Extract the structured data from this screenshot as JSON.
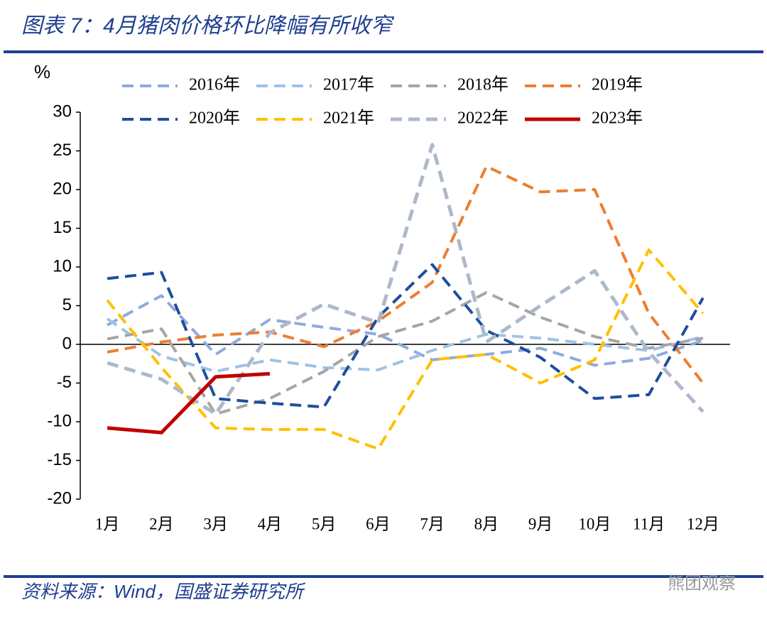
{
  "chart_data": {
    "type": "line",
    "title": "图表 7：4月猪肉价格环比降幅有所收窄",
    "y_label": "%",
    "categories": [
      "1月",
      "2月",
      "3月",
      "4月",
      "5月",
      "6月",
      "7月",
      "8月",
      "9月",
      "10月",
      "11月",
      "12月"
    ],
    "ylim": [
      -20,
      30
    ],
    "yticks": [
      -20,
      -15,
      -10,
      -5,
      0,
      5,
      10,
      15,
      20,
      25,
      30
    ],
    "series": [
      {
        "name": "2016年",
        "color": "#8faadc",
        "dashed": true,
        "values": [
          2.5,
          6.3,
          -1.3,
          3.2,
          2.2,
          1.3,
          -2,
          -1.3,
          -0.5,
          -2.7,
          -1.8,
          0.5
        ]
      },
      {
        "name": "2017年",
        "color": "#9dc3e6",
        "dashed": true,
        "values": [
          3.3,
          -1.5,
          -3.5,
          -2,
          -3,
          -3.3,
          -0.8,
          1.3,
          0.8,
          0,
          -0.8,
          1
        ]
      },
      {
        "name": "2018年",
        "color": "#a5a5a5",
        "dashed": true,
        "values": [
          0.7,
          2,
          -9,
          -7,
          -3.5,
          1,
          3,
          6.7,
          3.5,
          1,
          -0.5,
          0.8
        ]
      },
      {
        "name": "2019年",
        "color": "#ed7d31",
        "dashed": true,
        "values": [
          -1,
          0.3,
          1.2,
          1.6,
          -0.3,
          3,
          8,
          23,
          19.7,
          20,
          4,
          -5
        ]
      },
      {
        "name": "2020年",
        "color": "#1f4e9c",
        "dashed": true,
        "values": [
          8.5,
          9.3,
          -7,
          -7.6,
          -8.1,
          3.5,
          10.3,
          1.8,
          -1.7,
          -7,
          -6.5,
          6
        ]
      },
      {
        "name": "2021年",
        "color": "#ffc000",
        "dashed": true,
        "values": [
          5.7,
          -3,
          -10.8,
          -11,
          -11,
          -13.5,
          -2,
          -1.3,
          -5,
          -2,
          12.2,
          4
        ]
      },
      {
        "name": "2022年",
        "color": "#adb9ca",
        "dashed": true,
        "values": [
          -2.4,
          -4.5,
          -9,
          1.5,
          5.2,
          2.8,
          25.8,
          0.3,
          5,
          9.5,
          -1,
          -8.7
        ]
      },
      {
        "name": "2023年",
        "color": "#c00000",
        "dashed": false,
        "values": [
          -10.8,
          -11.4,
          -4.2,
          -3.8,
          null,
          null,
          null,
          null,
          null,
          null,
          null,
          null
        ]
      }
    ]
  },
  "source": "资料来源：Wind，国盛证券研究所",
  "watermark": "熊团观察"
}
